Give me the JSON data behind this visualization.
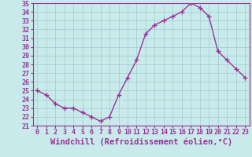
{
  "x": [
    0,
    1,
    2,
    3,
    4,
    5,
    6,
    7,
    8,
    9,
    10,
    11,
    12,
    13,
    14,
    15,
    16,
    17,
    18,
    19,
    20,
    21,
    22,
    23
  ],
  "y": [
    25.0,
    24.5,
    23.5,
    23.0,
    23.0,
    22.5,
    22.0,
    21.5,
    22.0,
    24.5,
    26.5,
    28.5,
    31.5,
    32.5,
    33.0,
    33.5,
    34.0,
    35.0,
    34.5,
    33.5,
    29.5,
    28.5,
    27.5,
    26.5
  ],
  "line_color": "#993399",
  "marker": "+",
  "markersize": 4,
  "markeredgewidth": 1.0,
  "linewidth": 1.0,
  "xlabel": "Windchill (Refroidissement éolien,°C)",
  "ylim": [
    21,
    35
  ],
  "xlim": [
    -0.5,
    23.5
  ],
  "yticks": [
    21,
    22,
    23,
    24,
    25,
    26,
    27,
    28,
    29,
    30,
    31,
    32,
    33,
    34,
    35
  ],
  "xticks": [
    0,
    1,
    2,
    3,
    4,
    5,
    6,
    7,
    8,
    9,
    10,
    11,
    12,
    13,
    14,
    15,
    16,
    17,
    18,
    19,
    20,
    21,
    22,
    23
  ],
  "background_color": "#c8eaea",
  "grid_color": "#a0cccc",
  "line_border_color": "#993399",
  "tick_color": "#993399",
  "label_color": "#993399",
  "font_size_tick": 6,
  "font_size_xlabel": 7.5
}
